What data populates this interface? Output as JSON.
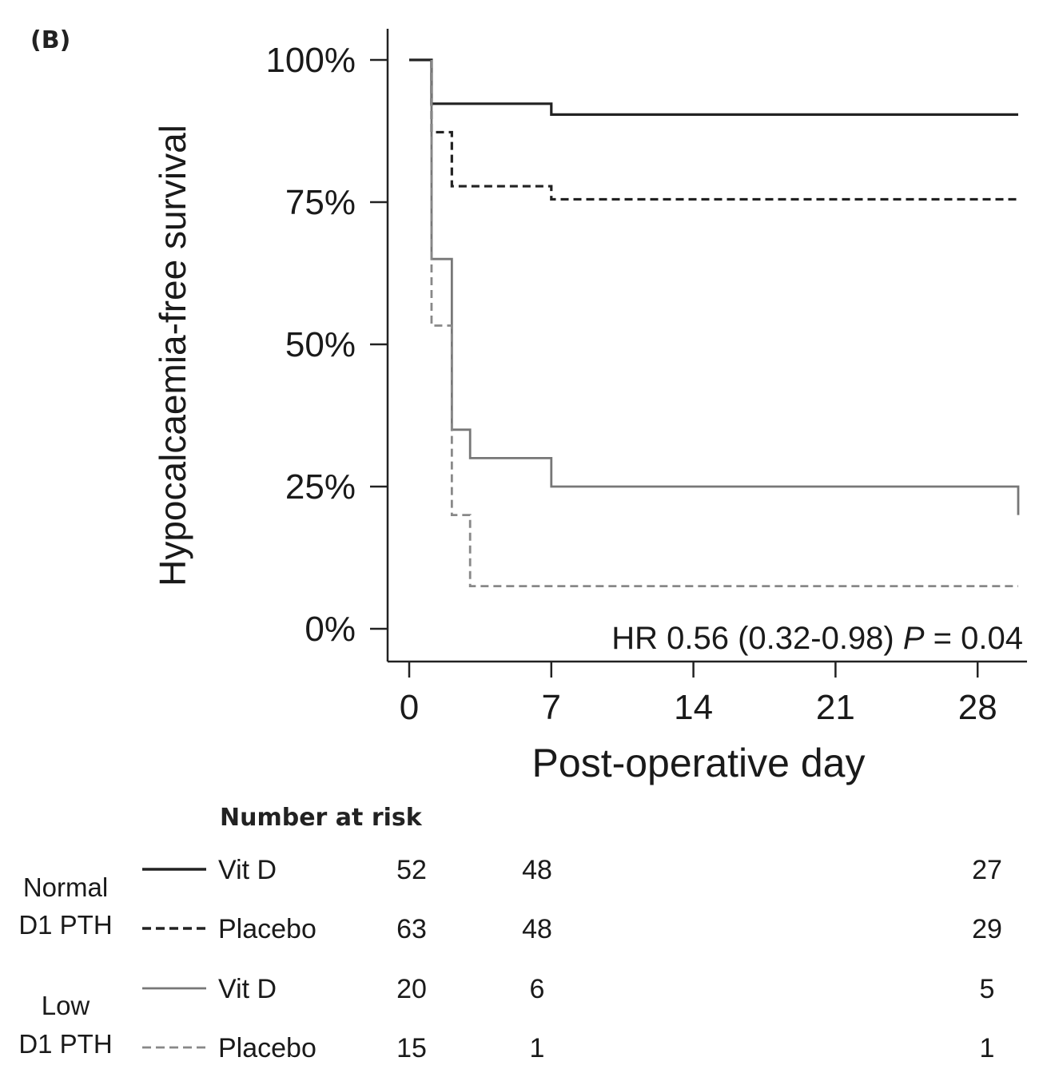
{
  "panel_label": "(B)",
  "chart_data": {
    "type": "line",
    "subtype": "kaplan-meier",
    "ylabel": "Hypocalcaemia-free survival",
    "xlabel": "Post-operative day",
    "xlim": [
      -1,
      30.5
    ],
    "ylim": [
      -5,
      107
    ],
    "x_ticks": [
      0,
      7,
      14,
      21,
      28
    ],
    "y_ticks": [
      0,
      25,
      50,
      75,
      100
    ],
    "y_tick_labels": [
      "0%",
      "25%",
      "50%",
      "75%",
      "100%"
    ],
    "annotation": {
      "prefix": "HR 0.56 (0.32-0.98) ",
      "p_symbol": "P",
      "suffix": " = 0.04"
    },
    "series": [
      {
        "group": "Normal D1 PTH",
        "arm": "Vit D",
        "color": "#222222",
        "dash": "solid",
        "steps": [
          [
            0,
            100
          ],
          [
            1.1,
            92.3
          ],
          [
            7,
            90.4
          ],
          [
            30,
            90.4
          ]
        ]
      },
      {
        "group": "Normal D1 PTH",
        "arm": "Placebo",
        "color": "#222222",
        "dash": "dashed",
        "steps": [
          [
            1.1,
            100
          ],
          [
            1.1,
            87.3
          ],
          [
            2.1,
            77.8
          ],
          [
            7,
            75.5
          ],
          [
            30,
            75.5
          ]
        ]
      },
      {
        "group": "Low D1 PTH",
        "arm": "Vit D",
        "color": "#777777",
        "dash": "solid",
        "steps": [
          [
            1.1,
            100
          ],
          [
            1.1,
            65
          ],
          [
            2.1,
            35
          ],
          [
            3,
            30
          ],
          [
            7,
            25
          ],
          [
            30,
            25
          ],
          [
            30,
            20
          ]
        ]
      },
      {
        "group": "Low D1 PTH",
        "arm": "Placebo",
        "color": "#888888",
        "dash": "dashed",
        "steps": [
          [
            1.1,
            100
          ],
          [
            1.1,
            53.3
          ],
          [
            2.1,
            20
          ],
          [
            3,
            7.5
          ],
          [
            30,
            7.5
          ]
        ]
      }
    ]
  },
  "risk_table": {
    "title": "Number at risk",
    "columns_x": [
      0,
      6,
      28
    ],
    "groups": [
      {
        "label_line1": "Normal",
        "label_line2": "D1 PTH",
        "rows": [
          {
            "arm": "Vit D",
            "color": "#222222",
            "dash": "solid",
            "counts": [
              "52",
              "48",
              "27"
            ]
          },
          {
            "arm": "Placebo",
            "color": "#222222",
            "dash": "dashed",
            "counts": [
              "63",
              "48",
              "29"
            ]
          }
        ]
      },
      {
        "label_line1": "Low",
        "label_line2": "D1 PTH",
        "rows": [
          {
            "arm": "Vit D",
            "color": "#777777",
            "dash": "solid",
            "counts": [
              "20",
              "6",
              "5"
            ]
          },
          {
            "arm": "Placebo",
            "color": "#888888",
            "dash": "dashed",
            "counts": [
              "15",
              "1",
              "1"
            ]
          }
        ]
      }
    ]
  }
}
